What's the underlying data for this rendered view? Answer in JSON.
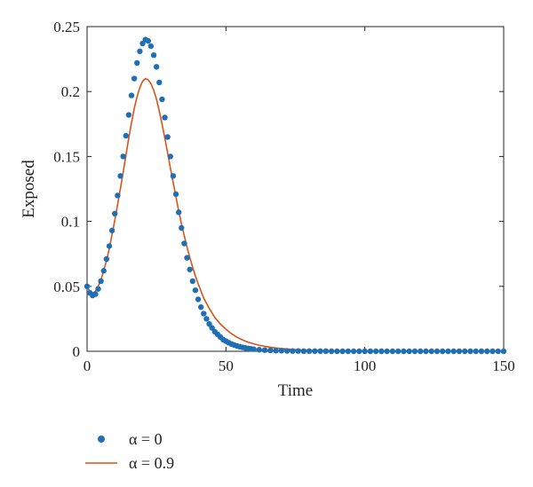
{
  "chart_data": {
    "type": "line",
    "xlabel": "Time",
    "ylabel": "Exposed",
    "xlim": [
      0,
      150
    ],
    "ylim": [
      0,
      0.25
    ],
    "xticks": [
      0,
      50,
      100,
      150
    ],
    "xtick_labels": [
      "0",
      "50",
      "100",
      "150"
    ],
    "yticks": [
      0,
      0.05,
      0.1,
      0.15,
      0.2,
      0.25
    ],
    "ytick_labels": [
      "0",
      "0.05",
      "0.1",
      "0.15",
      "0.2",
      "0.25"
    ],
    "grid": false,
    "legend_position": "bottom-left, below plot",
    "series": [
      {
        "name": "α = 0",
        "style": "markers",
        "color": "#1f6fb5",
        "x": [
          0,
          1,
          2,
          3,
          4,
          5,
          6,
          7,
          8,
          9,
          10,
          11,
          12,
          13,
          14,
          15,
          16,
          17,
          18,
          19,
          20,
          21,
          22,
          23,
          24,
          25,
          26,
          27,
          28,
          29,
          30,
          31,
          32,
          33,
          34,
          35,
          36,
          37,
          38,
          39,
          40,
          41,
          42,
          43,
          44,
          45,
          46,
          47,
          48,
          49,
          50,
          51,
          52,
          53,
          54,
          55,
          56,
          57,
          58,
          59,
          60,
          62,
          64,
          66,
          68,
          70,
          72,
          74,
          76,
          78,
          80,
          82,
          84,
          86,
          88,
          90,
          92,
          94,
          96,
          98,
          100,
          102,
          104,
          106,
          108,
          110,
          112,
          114,
          116,
          118,
          120,
          122,
          124,
          126,
          128,
          130,
          132,
          134,
          136,
          138,
          140,
          142,
          144,
          146,
          148,
          150
        ],
        "values": [
          0.05,
          0.045,
          0.043,
          0.044,
          0.048,
          0.054,
          0.062,
          0.071,
          0.081,
          0.093,
          0.106,
          0.12,
          0.135,
          0.15,
          0.166,
          0.182,
          0.197,
          0.21,
          0.222,
          0.231,
          0.237,
          0.24,
          0.239,
          0.235,
          0.228,
          0.219,
          0.207,
          0.194,
          0.18,
          0.165,
          0.15,
          0.135,
          0.121,
          0.107,
          0.095,
          0.083,
          0.072,
          0.063,
          0.054,
          0.047,
          0.04,
          0.034,
          0.029,
          0.025,
          0.021,
          0.018,
          0.015,
          0.013,
          0.011,
          0.009,
          0.0078,
          0.0066,
          0.0056,
          0.0048,
          0.0041,
          0.0035,
          0.003,
          0.0026,
          0.0022,
          0.0019,
          0.0016,
          0.0012,
          0.0009,
          0.0007,
          0.0005,
          0.0004,
          0.0003,
          0.0002,
          0.0002,
          0.0001,
          0.0001,
          0.0001,
          0.0001,
          0.0001,
          0,
          0,
          0,
          0,
          0,
          0,
          0,
          0,
          0,
          0,
          0,
          0,
          0,
          0,
          0,
          0,
          0,
          0,
          0,
          0,
          0,
          0,
          0,
          0,
          0,
          0,
          0,
          0,
          0,
          0,
          0,
          0
        ]
      },
      {
        "name": "α = 0.9",
        "style": "line",
        "color": "#d95319",
        "x": [
          0,
          1,
          2,
          3,
          4,
          5,
          6,
          7,
          8,
          9,
          10,
          11,
          12,
          13,
          14,
          15,
          16,
          17,
          18,
          19,
          20,
          21,
          22,
          23,
          24,
          25,
          26,
          27,
          28,
          29,
          30,
          31,
          32,
          33,
          34,
          35,
          36,
          37,
          38,
          39,
          40,
          42,
          44,
          46,
          48,
          50,
          52,
          54,
          56,
          58,
          60,
          62,
          64,
          66,
          68,
          70,
          74,
          78,
          82,
          86,
          90,
          95,
          100,
          110,
          120,
          130,
          140,
          150
        ],
        "values": [
          0.05,
          0.046,
          0.045,
          0.046,
          0.05,
          0.055,
          0.062,
          0.07,
          0.079,
          0.09,
          0.101,
          0.113,
          0.125,
          0.138,
          0.151,
          0.164,
          0.176,
          0.187,
          0.196,
          0.203,
          0.208,
          0.21,
          0.209,
          0.206,
          0.201,
          0.194,
          0.185,
          0.175,
          0.164,
          0.153,
          0.141,
          0.13,
          0.119,
          0.108,
          0.098,
          0.089,
          0.08,
          0.072,
          0.065,
          0.058,
          0.052,
          0.041,
          0.033,
          0.026,
          0.021,
          0.017,
          0.0135,
          0.0108,
          0.0087,
          0.007,
          0.0057,
          0.0046,
          0.0038,
          0.0031,
          0.0025,
          0.0021,
          0.0014,
          0.001,
          0.0007,
          0.0005,
          0.0003,
          0.0002,
          0.0001,
          0.0001,
          0,
          0,
          0,
          0
        ]
      }
    ]
  }
}
